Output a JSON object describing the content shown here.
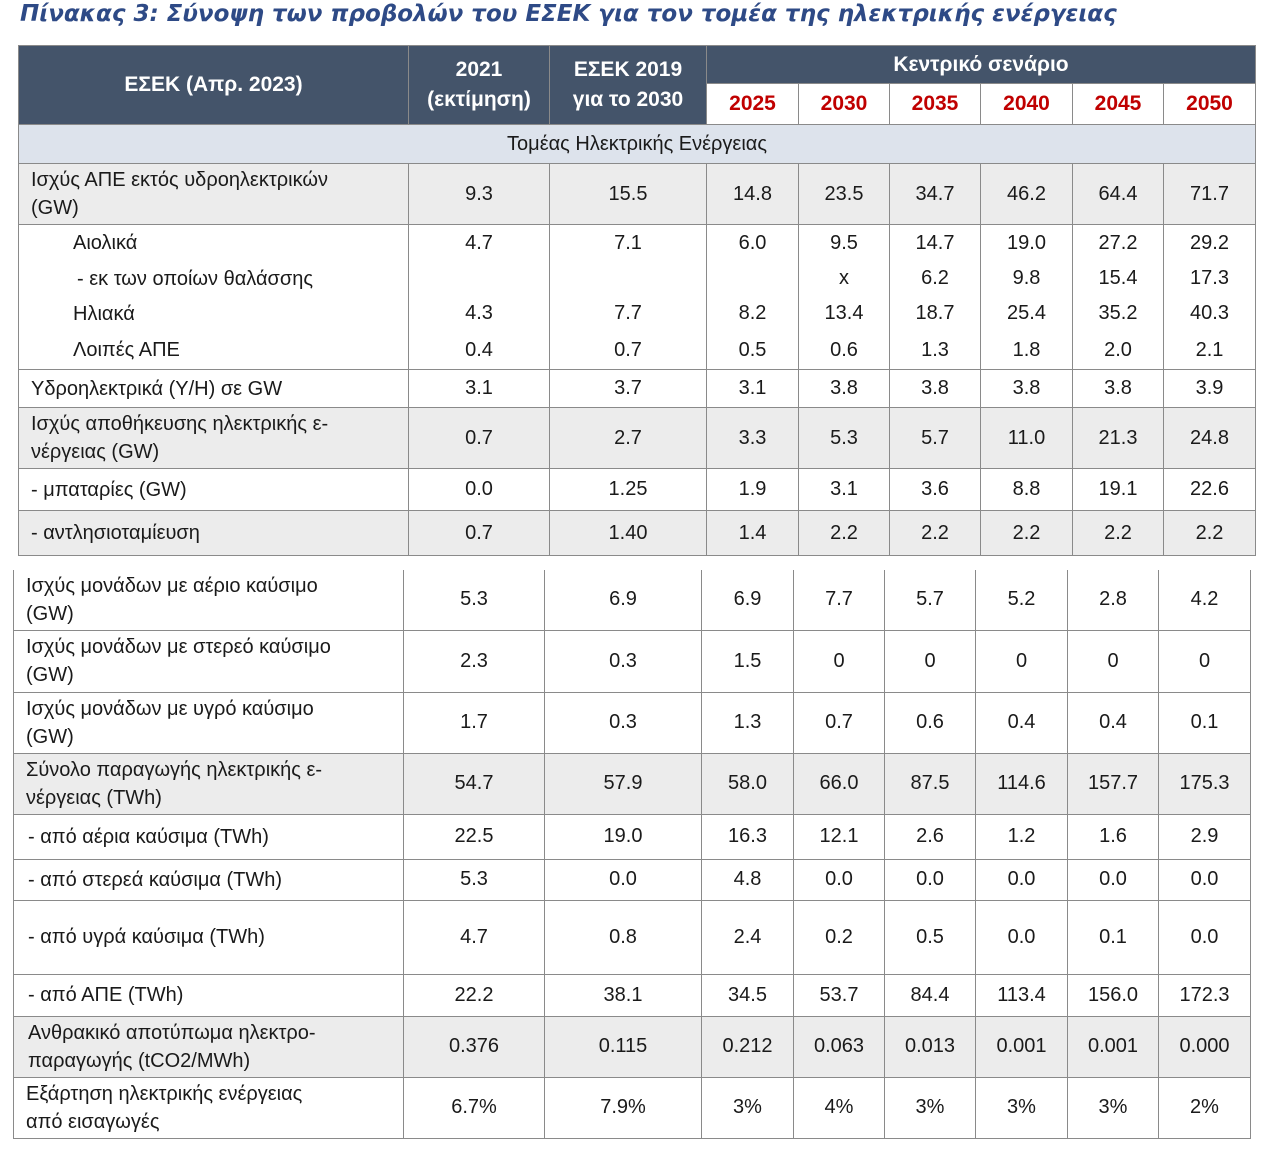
{
  "caption": "Πίνακας 3: Σύνοψη των προβολών του ΕΣΕΚ για τον τομέα της ηλεκτρικής ενέργειας",
  "header": {
    "col_label": "ΕΣΕΚ (Απρ. 2023)",
    "col_2021_line1": "2021",
    "col_2021_line2": "(εκτίμηση)",
    "col_esek2019_line1": "ΕΣΕΚ 2019",
    "col_esek2019_line2": "για το 2030",
    "scenario": "Κεντρικό σενάριο",
    "years": [
      "2025",
      "2030",
      "2035",
      "2040",
      "2045",
      "2050"
    ]
  },
  "section_title": "Τομέας Ηλεκτρικής Ενέργειας",
  "top_rows": [
    {
      "l1": "Ισχύς ΑΠΕ εκτός υδροηλεκτρικών",
      "l2": "(GW)",
      "v": [
        "9.3",
        "15.5",
        "14.8",
        "23.5",
        "34.7",
        "46.2",
        "64.4",
        "71.7"
      ]
    },
    {
      "l1": "Αιολικά",
      "v": [
        "4.7",
        "7.1",
        "6.0",
        "9.5",
        "14.7",
        "19.0",
        "27.2",
        "29.2"
      ]
    },
    {
      "l1": "- εκ των οποίων θαλάσσης",
      "v": [
        "",
        "",
        "",
        "x",
        "6.2",
        "9.8",
        "15.4",
        "17.3"
      ]
    },
    {
      "l1": "Ηλιακά",
      "v": [
        "4.3",
        "7.7",
        "8.2",
        "13.4",
        "18.7",
        "25.4",
        "35.2",
        "40.3"
      ]
    },
    {
      "l1": "Λοιπές ΑΠΕ",
      "v": [
        "0.4",
        "0.7",
        "0.5",
        "0.6",
        "1.3",
        "1.8",
        "2.0",
        "2.1"
      ]
    },
    {
      "l1": "Υδροηλεκτρικά (Υ/Η) σε GW",
      "v": [
        "3.1",
        "3.7",
        "3.1",
        "3.8",
        "3.8",
        "3.8",
        "3.8",
        "3.9"
      ]
    },
    {
      "l1": "Ισχύς αποθήκευσης ηλεκτρικής ε-",
      "l2": "νέργειας (GW)",
      "v": [
        "0.7",
        "2.7",
        "3.3",
        "5.3",
        "5.7",
        "11.0",
        "21.3",
        "24.8"
      ]
    },
    {
      "l1": "- μπαταρίες (GW)",
      "v": [
        "0.0",
        "1.25",
        "1.9",
        "3.1",
        "3.6",
        "8.8",
        "19.1",
        "22.6"
      ]
    },
    {
      "l1": "- αντλησιοταμίευση",
      "v": [
        "0.7",
        "1.40",
        "1.4",
        "2.2",
        "2.2",
        "2.2",
        "2.2",
        "2.2"
      ]
    }
  ],
  "bottom_rows": [
    {
      "l1": "Ισχύς μονάδων με αέριο καύσιμο",
      "l2": "(GW)",
      "v": [
        "5.3",
        "6.9",
        "6.9",
        "7.7",
        "5.7",
        "5.2",
        "2.8",
        "4.2"
      ]
    },
    {
      "l1": "Ισχύς μονάδων με στερεό καύσιμο",
      "l2": "(GW)",
      "v": [
        "2.3",
        "0.3",
        "1.5",
        "0",
        "0",
        "0",
        "0",
        "0"
      ]
    },
    {
      "l1": "Ισχύς μονάδων με υγρό καύσιμο",
      "l2": "(GW)",
      "v": [
        "1.7",
        "0.3",
        "1.3",
        "0.7",
        "0.6",
        "0.4",
        "0.4",
        "0.1"
      ]
    },
    {
      "l1": "Σύνολο παραγωγής ηλεκτρικής ε-",
      "l2": "νέργειας (TWh)",
      "v": [
        "54.7",
        "57.9",
        "58.0",
        "66.0",
        "87.5",
        "114.6",
        "157.7",
        "175.3"
      ]
    },
    {
      "l1": "- από αέρια καύσιμα (TWh)",
      "v": [
        "22.5",
        "19.0",
        "16.3",
        "12.1",
        "2.6",
        "1.2",
        "1.6",
        "2.9"
      ]
    },
    {
      "l1": "- από στερεά καύσιμα (TWh)",
      "v": [
        "5.3",
        "0.0",
        "4.8",
        "0.0",
        "0.0",
        "0.0",
        "0.0",
        "0.0"
      ]
    },
    {
      "l1": "- από υγρά καύσιμα (TWh)",
      "v": [
        "4.7",
        "0.8",
        "2.4",
        "0.2",
        "0.5",
        "0.0",
        "0.1",
        "0.0"
      ]
    },
    {
      "l1": "- από ΑΠΕ (TWh)",
      "v": [
        "22.2",
        "38.1",
        "34.5",
        "53.7",
        "84.4",
        "113.4",
        "156.0",
        "172.3"
      ]
    },
    {
      "l1": "Ανθρακικό αποτύπωμα ηλεκτρο-",
      "l2": "παραγωγής (tCO2/MWh)",
      "v": [
        "0.376",
        "0.115",
        "0.212",
        "0.063",
        "0.013",
        "0.001",
        "0.001",
        "0.000"
      ]
    },
    {
      "l1": "Εξάρτηση ηλεκτρικής ενέργειας",
      "l2": "από εισαγωγές",
      "v": [
        "6.7%",
        "7.9%",
        "3%",
        "4%",
        "3%",
        "3%",
        "3%",
        "2%"
      ]
    }
  ]
}
